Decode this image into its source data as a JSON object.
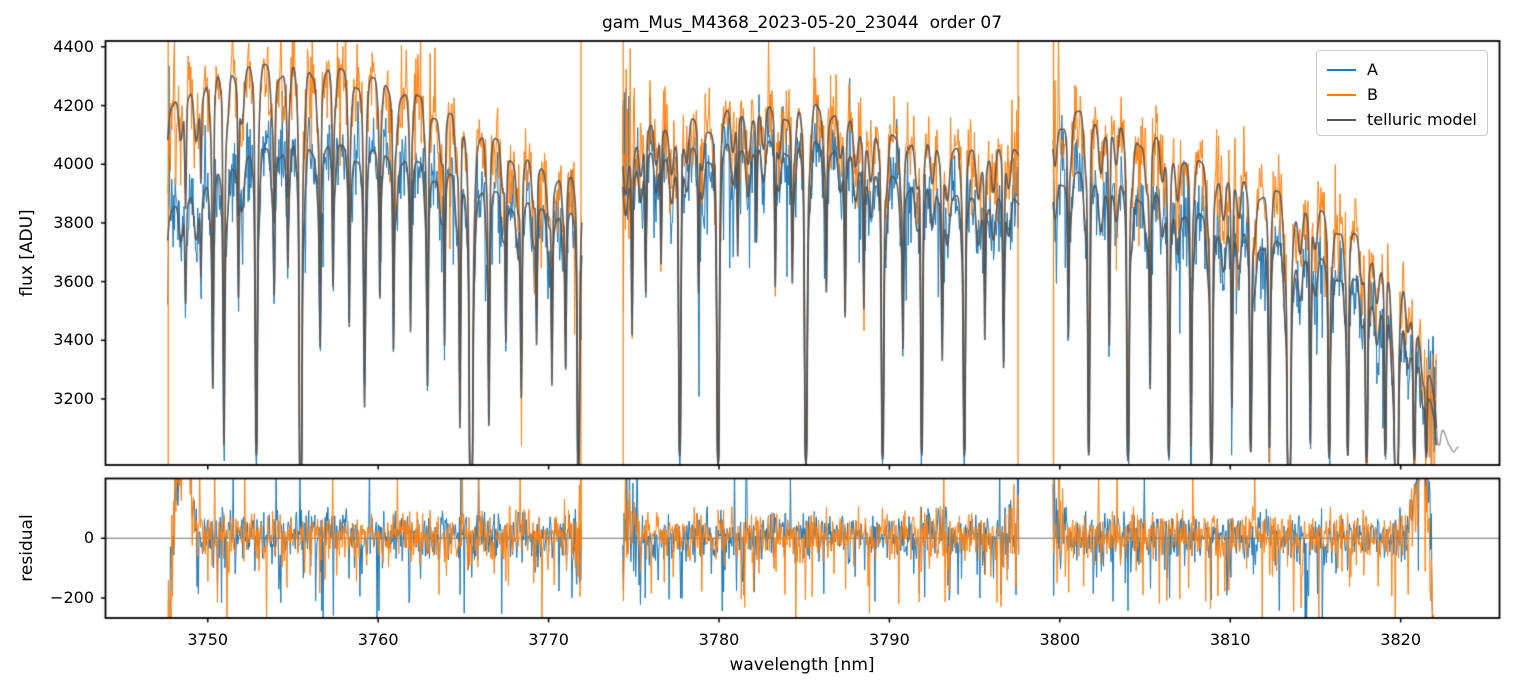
{
  "chart_data": {
    "type": "line",
    "title": "gam_Mus_M4368_2023-05-20_23044  order 07",
    "xlabel": "wavelength [nm]",
    "xlim": [
      3744.0,
      3825.8
    ],
    "xticks": [
      3750,
      3760,
      3770,
      3780,
      3790,
      3800,
      3810,
      3820
    ],
    "panels": [
      {
        "name": "flux",
        "ylabel": "flux [ADU]",
        "ylim": [
          2975,
          4420
        ],
        "yticks": [
          4400,
          4200,
          4000,
          3800,
          3600,
          3400,
          3200
        ]
      },
      {
        "name": "residual",
        "ylabel": "residual",
        "ylim": [
          -267,
          200
        ],
        "yticks": [
          0,
          -200
        ],
        "zero_line": true
      }
    ],
    "legend": {
      "position": "upper right"
    },
    "series": [
      {
        "name": "A",
        "color": "#1f77b4"
      },
      {
        "name": "B",
        "color": "#ff7f0e"
      },
      {
        "name": "telluric model",
        "color": "#555555"
      }
    ],
    "segments": [
      [
        3747.65,
        3771.95
      ],
      [
        3774.35,
        3797.6
      ],
      [
        3799.6,
        3822.1
      ]
    ],
    "edge_spikes": [
      3747.68,
      3771.9,
      3774.38,
      3797.55,
      3799.63
    ],
    "model_tail": [
      3821.9,
      3823.4
    ],
    "continuum_B": [
      [
        3747.6,
        4180
      ],
      [
        3748.5,
        4240
      ],
      [
        3749.5,
        4280
      ],
      [
        3750.5,
        4310
      ],
      [
        3751.5,
        4335
      ],
      [
        3752.5,
        4350
      ],
      [
        3753.5,
        4345
      ],
      [
        3754.5,
        4340
      ],
      [
        3755.5,
        4338
      ],
      [
        3756.5,
        4332
      ],
      [
        3757.5,
        4330
      ],
      [
        3758.5,
        4315
      ],
      [
        3759.5,
        4300
      ],
      [
        3760.5,
        4280
      ],
      [
        3761.5,
        4255
      ],
      [
        3762.5,
        4230
      ],
      [
        3763.5,
        4200
      ],
      [
        3764.5,
        4165
      ],
      [
        3765.5,
        4130
      ],
      [
        3766.5,
        4100
      ],
      [
        3767.5,
        4070
      ],
      [
        3768.5,
        4025
      ],
      [
        3769.5,
        3995
      ],
      [
        3770.5,
        3975
      ],
      [
        3771.9,
        3945
      ],
      [
        3774.3,
        4060
      ],
      [
        3775.5,
        4120
      ],
      [
        3776.5,
        4150
      ],
      [
        3777.5,
        4165
      ],
      [
        3778.5,
        4155
      ],
      [
        3779.5,
        4160
      ],
      [
        3780.5,
        4185
      ],
      [
        3781.5,
        4195
      ],
      [
        3782.5,
        4200
      ],
      [
        3783.5,
        4190
      ],
      [
        3784.5,
        4210
      ],
      [
        3785.5,
        4215
      ],
      [
        3786.5,
        4200
      ],
      [
        3787.5,
        4160
      ],
      [
        3788.5,
        4130
      ],
      [
        3789.5,
        4110
      ],
      [
        3790.5,
        4100
      ],
      [
        3791.5,
        4095
      ],
      [
        3792.5,
        4080
      ],
      [
        3793.5,
        4065
      ],
      [
        3794.5,
        4055
      ],
      [
        3795.5,
        4055
      ],
      [
        3796.5,
        4060
      ],
      [
        3797.6,
        4070
      ],
      [
        3799.6,
        4160
      ],
      [
        3800.5,
        4175
      ],
      [
        3801.5,
        4185
      ],
      [
        3802.5,
        4160
      ],
      [
        3803.5,
        4140
      ],
      [
        3804.5,
        4115
      ],
      [
        3805.5,
        4095
      ],
      [
        3806.5,
        4080
      ],
      [
        3807.5,
        4035
      ],
      [
        3808.5,
        4000
      ],
      [
        3809.5,
        3990
      ],
      [
        3810.5,
        3955
      ],
      [
        3811.5,
        3930
      ],
      [
        3812.5,
        3915
      ],
      [
        3813.5,
        3890
      ],
      [
        3814.5,
        3860
      ],
      [
        3815.5,
        3840
      ],
      [
        3816.5,
        3800
      ],
      [
        3817.5,
        3755
      ],
      [
        3818.5,
        3705
      ],
      [
        3819.5,
        3650
      ],
      [
        3820.3,
        3590
      ],
      [
        3820.9,
        3500
      ],
      [
        3821.4,
        3380
      ],
      [
        3821.9,
        3230
      ],
      [
        3822.3,
        3120
      ],
      [
        3822.9,
        3060
      ],
      [
        3823.5,
        3020
      ]
    ],
    "continuum_A": [
      [
        3747.6,
        3830
      ],
      [
        3748.5,
        3880
      ],
      [
        3749.5,
        3930
      ],
      [
        3750.5,
        3975
      ],
      [
        3751.5,
        4015
      ],
      [
        3752.5,
        4045
      ],
      [
        3753.5,
        4060
      ],
      [
        3754.5,
        4070
      ],
      [
        3755.5,
        4072
      ],
      [
        3756.5,
        4070
      ],
      [
        3757.5,
        4068
      ],
      [
        3758.5,
        4060
      ],
      [
        3759.5,
        4050
      ],
      [
        3760.5,
        4040
      ],
      [
        3761.5,
        4025
      ],
      [
        3762.5,
        4005
      ],
      [
        3763.5,
        3985
      ],
      [
        3764.5,
        3960
      ],
      [
        3765.5,
        3935
      ],
      [
        3766.5,
        3915
      ],
      [
        3767.5,
        3895
      ],
      [
        3768.5,
        3875
      ],
      [
        3769.5,
        3858
      ],
      [
        3770.5,
        3845
      ],
      [
        3771.9,
        3828
      ],
      [
        3774.3,
        3990
      ],
      [
        3775.5,
        4030
      ],
      [
        3776.5,
        4050
      ],
      [
        3777.5,
        4060
      ],
      [
        3778.5,
        4055
      ],
      [
        3779.5,
        4055
      ],
      [
        3780.5,
        4070
      ],
      [
        3781.5,
        4078
      ],
      [
        3782.5,
        4082
      ],
      [
        3783.5,
        4075
      ],
      [
        3784.5,
        4085
      ],
      [
        3785.5,
        4088
      ],
      [
        3786.5,
        4075
      ],
      [
        3787.5,
        4040
      ],
      [
        3788.5,
        4005
      ],
      [
        3789.5,
        3975
      ],
      [
        3790.5,
        3955
      ],
      [
        3791.5,
        3945
      ],
      [
        3792.5,
        3925
      ],
      [
        3793.5,
        3905
      ],
      [
        3794.5,
        3892
      ],
      [
        3795.5,
        3888
      ],
      [
        3796.5,
        3892
      ],
      [
        3797.6,
        3900
      ],
      [
        3799.6,
        3975
      ],
      [
        3800.5,
        3975
      ],
      [
        3801.5,
        3970
      ],
      [
        3802.5,
        3955
      ],
      [
        3803.5,
        3940
      ],
      [
        3804.5,
        3922
      ],
      [
        3805.5,
        3900
      ],
      [
        3806.5,
        3885
      ],
      [
        3807.5,
        3850
      ],
      [
        3808.5,
        3820
      ],
      [
        3809.5,
        3805
      ],
      [
        3810.5,
        3775
      ],
      [
        3811.5,
        3755
      ],
      [
        3812.5,
        3740
      ],
      [
        3813.5,
        3720
      ],
      [
        3814.5,
        3695
      ],
      [
        3815.5,
        3675
      ],
      [
        3816.5,
        3640
      ],
      [
        3817.5,
        3600
      ],
      [
        3818.5,
        3555
      ],
      [
        3819.5,
        3505
      ],
      [
        3820.3,
        3455
      ],
      [
        3820.9,
        3390
      ],
      [
        3821.4,
        3300
      ],
      [
        3821.8,
        3180
      ],
      [
        3822.2,
        3080
      ]
    ],
    "telluric_lines": [
      [
        3748.7,
        0.08,
        0.06
      ],
      [
        3749.6,
        0.06,
        0.05
      ],
      [
        3750.3,
        0.14,
        0.06
      ],
      [
        3750.95,
        0.2,
        0.07
      ],
      [
        3751.8,
        0.09,
        0.05
      ],
      [
        3752.85,
        0.24,
        0.08
      ],
      [
        3753.9,
        0.08,
        0.05
      ],
      [
        3754.7,
        0.06,
        0.05
      ],
      [
        3755.45,
        0.55,
        0.07
      ],
      [
        3756.6,
        0.12,
        0.06
      ],
      [
        3757.35,
        0.08,
        0.05
      ],
      [
        3758.3,
        0.1,
        0.05
      ],
      [
        3759.2,
        0.16,
        0.07
      ],
      [
        3760.1,
        0.08,
        0.05
      ],
      [
        3760.9,
        0.12,
        0.05
      ],
      [
        3761.9,
        0.1,
        0.05
      ],
      [
        3762.9,
        0.14,
        0.06
      ],
      [
        3763.9,
        0.12,
        0.05
      ],
      [
        3764.8,
        0.18,
        0.06
      ],
      [
        3765.45,
        0.6,
        0.08
      ],
      [
        3766.5,
        0.16,
        0.06
      ],
      [
        3767.5,
        0.1,
        0.05
      ],
      [
        3768.4,
        0.14,
        0.06
      ],
      [
        3769.3,
        0.1,
        0.05
      ],
      [
        3770.2,
        0.12,
        0.05
      ],
      [
        3771.0,
        0.1,
        0.05
      ],
      [
        3771.75,
        0.26,
        0.07
      ],
      [
        3774.9,
        0.12,
        0.05
      ],
      [
        3775.7,
        0.1,
        0.05
      ],
      [
        3776.6,
        0.08,
        0.05
      ],
      [
        3777.7,
        0.26,
        0.08
      ],
      [
        3778.8,
        0.1,
        0.05
      ],
      [
        3779.95,
        0.28,
        0.08
      ],
      [
        3781.1,
        0.08,
        0.05
      ],
      [
        3782.2,
        0.07,
        0.05
      ],
      [
        3783.3,
        0.1,
        0.05
      ],
      [
        3784.3,
        0.08,
        0.05
      ],
      [
        3785.1,
        0.3,
        0.09
      ],
      [
        3786.3,
        0.08,
        0.05
      ],
      [
        3787.4,
        0.12,
        0.06
      ],
      [
        3788.5,
        0.1,
        0.05
      ],
      [
        3789.6,
        0.26,
        0.08
      ],
      [
        3790.8,
        0.1,
        0.05
      ],
      [
        3791.9,
        0.24,
        0.07
      ],
      [
        3793.1,
        0.12,
        0.06
      ],
      [
        3794.4,
        0.22,
        0.07
      ],
      [
        3795.6,
        0.1,
        0.05
      ],
      [
        3796.7,
        0.13,
        0.06
      ],
      [
        3800.5,
        0.1,
        0.05
      ],
      [
        3801.7,
        0.24,
        0.07
      ],
      [
        3802.9,
        0.12,
        0.06
      ],
      [
        3804.0,
        0.26,
        0.08
      ],
      [
        3805.3,
        0.14,
        0.06
      ],
      [
        3806.4,
        0.24,
        0.07
      ],
      [
        3807.7,
        0.17,
        0.06
      ],
      [
        3808.9,
        0.26,
        0.08
      ],
      [
        3810.1,
        0.14,
        0.06
      ],
      [
        3811.2,
        0.19,
        0.07
      ],
      [
        3812.3,
        0.15,
        0.06
      ],
      [
        3813.45,
        0.6,
        0.08
      ],
      [
        3814.7,
        0.15,
        0.06
      ],
      [
        3815.8,
        0.19,
        0.06
      ],
      [
        3816.9,
        0.17,
        0.06
      ],
      [
        3818.0,
        0.21,
        0.07
      ],
      [
        3819.1,
        0.17,
        0.06
      ],
      [
        3819.75,
        0.65,
        0.08
      ],
      [
        3820.8,
        0.16,
        0.06
      ],
      [
        3821.5,
        0.12,
        0.05
      ]
    ],
    "noise": {
      "flux_sigma_frac": 0.016,
      "residual_sigma": 50,
      "edge_boost": 2.1
    }
  }
}
